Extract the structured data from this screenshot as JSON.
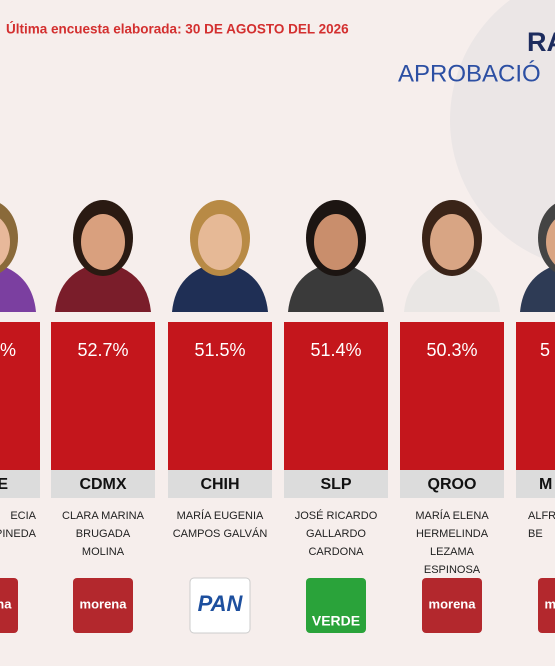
{
  "header": {
    "subtitle": "Última encuesta elaborada: 30 DE AGOSTO DEL 2026",
    "title_fragment": "RA",
    "subtitle_fragment": "APROBACIÓ"
  },
  "candidates": [
    {
      "value": "%",
      "state": "E",
      "name": [
        "ECIA",
        "PINEDA"
      ],
      "party": "morena"
    },
    {
      "value": "52.7%",
      "state": "CDMX",
      "name": [
        "CLARA MARINA",
        "BRUGADA",
        "MOLINA"
      ],
      "party": "morena"
    },
    {
      "value": "51.5%",
      "state": "CHIH",
      "name": [
        "MARÍA EUGENIA",
        "CAMPOS GALVÁN"
      ],
      "party": "PAN"
    },
    {
      "value": "51.4%",
      "state": "SLP",
      "name": [
        "JOSÉ RICARDO",
        "GALLARDO",
        "CARDONA"
      ],
      "party": "VERDE"
    },
    {
      "value": "50.3%",
      "state": "QROO",
      "name": [
        "MARÍA ELENA",
        "HERMELINDA",
        "LEZAMA",
        "ESPINOSA"
      ],
      "party": "morena"
    },
    {
      "value": "5",
      "state": "M",
      "name": [
        "ALFRED",
        "BE"
      ],
      "party": "morena"
    }
  ]
}
